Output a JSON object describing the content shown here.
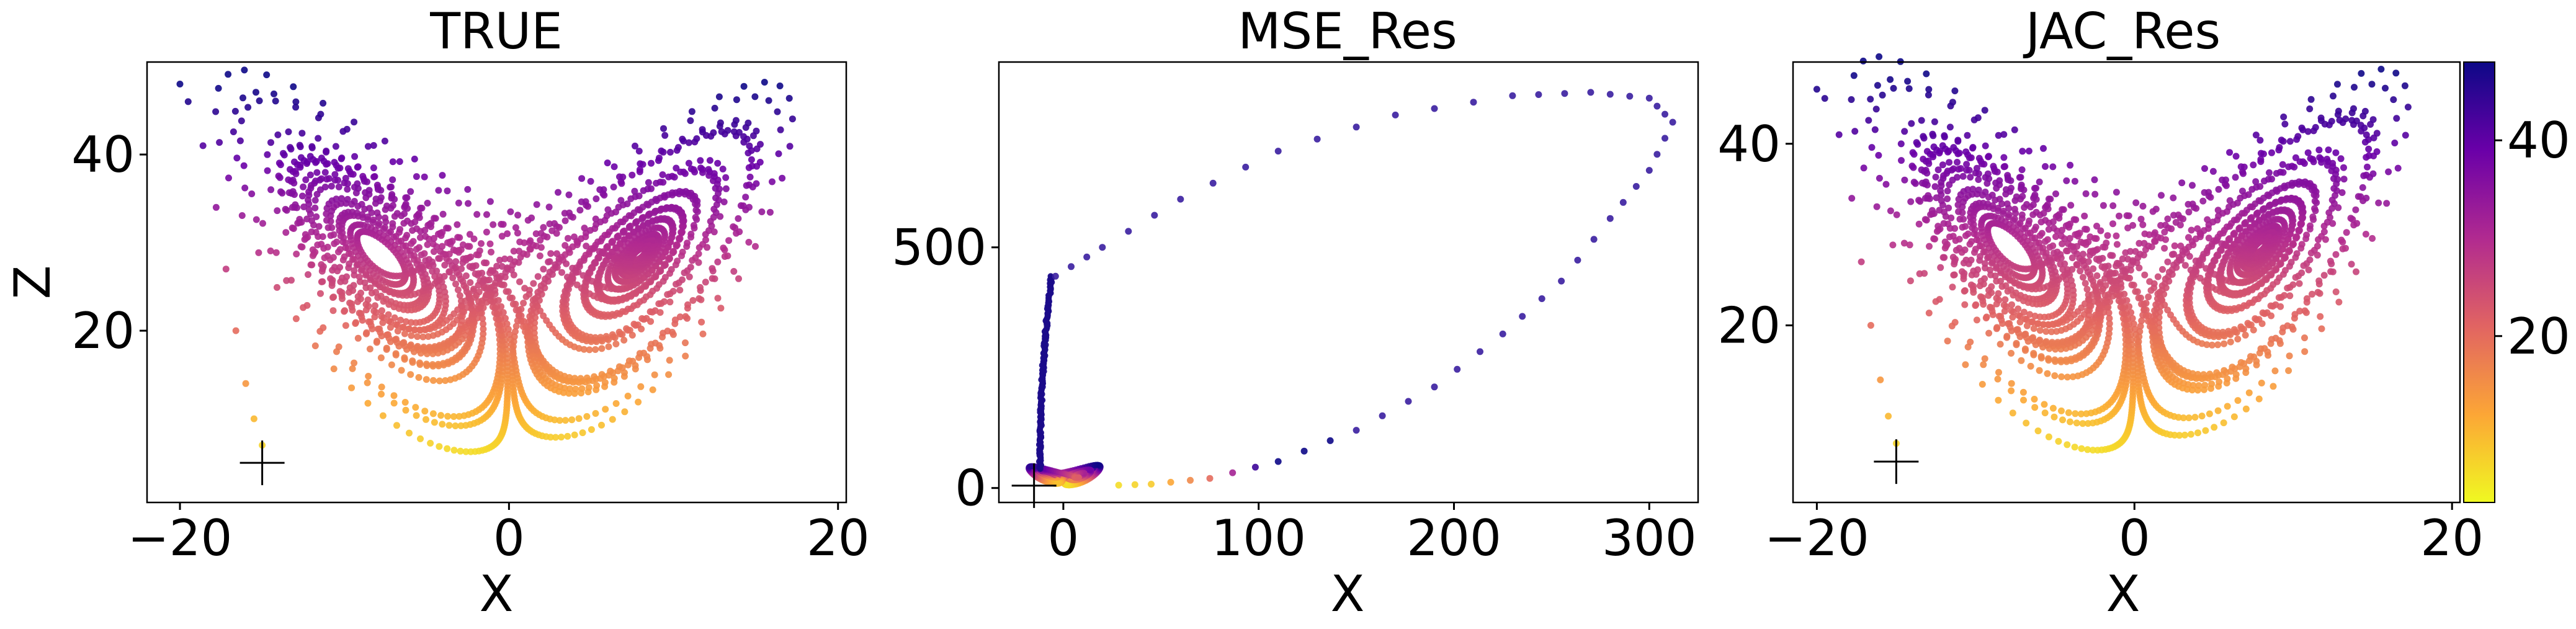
{
  "figure": {
    "colormap": "plasma"
  },
  "colorbar": {
    "min": 3,
    "max": 48,
    "ticks": [
      20,
      40
    ],
    "tick_labels": [
      "20",
      "40"
    ],
    "colors": [
      "#f0f921",
      "#fca636",
      "#e16462",
      "#b12a90",
      "#6a00a8",
      "#0d0887"
    ]
  },
  "chart_data": [
    {
      "type": "scatter",
      "title": "TRUE",
      "xlabel": "X",
      "ylabel": "Z",
      "xlim": [
        -22,
        20.5
      ],
      "ylim": [
        0.5,
        50.5
      ],
      "xticks": [
        -20,
        0,
        20
      ],
      "xtick_labels": [
        "−20",
        "0",
        "20"
      ],
      "yticks": [
        20,
        40
      ],
      "ytick_labels": [
        "20",
        "40"
      ],
      "initial_point": [
        -15,
        5
      ],
      "attractor": {
        "kind": "lorenz",
        "x_range": [
          -20,
          18.5
        ],
        "z_range": [
          3,
          48
        ],
        "orbits": 2600
      },
      "transient": [
        [
          -15,
          7
        ],
        [
          -15.5,
          10
        ],
        [
          -16,
          14
        ],
        [
          -16.6,
          20
        ],
        [
          -17.2,
          27
        ],
        [
          -17.8,
          34
        ],
        [
          -18.6,
          41
        ],
        [
          -19.5,
          46
        ],
        [
          -20,
          48
        ]
      ]
    },
    {
      "type": "scatter",
      "title": "MSE_Res",
      "xlabel": "X",
      "ylabel": "",
      "xlim": [
        -33,
        325
      ],
      "ylim": [
        -30,
        885
      ],
      "xticks": [
        0,
        100,
        200,
        300
      ],
      "xtick_labels": [
        "0",
        "100",
        "200",
        "300"
      ],
      "yticks": [
        0,
        500
      ],
      "ytick_labels": [
        "0",
        "500"
      ],
      "initial_point": [
        -15,
        5
      ],
      "blob": {
        "x_range": [
          -18,
          20
        ],
        "z_range": [
          -2,
          55
        ]
      },
      "column": {
        "x_range": [
          -12,
          -4
        ],
        "z_range": [
          40,
          440
        ]
      },
      "loop": [
        [
          -4,
          440
        ],
        [
          20,
          500
        ],
        [
          60,
          600
        ],
        [
          110,
          700
        ],
        [
          170,
          775
        ],
        [
          230,
          815
        ],
        [
          270,
          822
        ],
        [
          300,
          810
        ],
        [
          312,
          760
        ],
        [
          300,
          660
        ],
        [
          280,
          560
        ],
        [
          255,
          430
        ],
        [
          225,
          320
        ],
        [
          190,
          210
        ],
        [
          150,
          120
        ],
        [
          110,
          55
        ],
        [
          75,
          20
        ],
        [
          45,
          8
        ],
        [
          20,
          5
        ]
      ]
    },
    {
      "type": "scatter",
      "title": "JAC_Res",
      "xlabel": "X",
      "ylabel": "",
      "xlim": [
        -21.5,
        20.5
      ],
      "ylim": [
        0.5,
        49
      ],
      "xticks": [
        -20,
        0,
        20
      ],
      "xtick_labels": [
        "−20",
        "0",
        "20"
      ],
      "yticks": [
        20,
        40
      ],
      "ytick_labels": [
        "20",
        "40"
      ],
      "initial_point": [
        -15,
        5
      ],
      "attractor": {
        "kind": "lorenz",
        "x_range": [
          -20,
          18.5
        ],
        "z_range": [
          3,
          48
        ],
        "orbits": 2600
      },
      "transient": [
        [
          -15,
          7
        ],
        [
          -15.5,
          10
        ],
        [
          -16,
          14
        ],
        [
          -16.6,
          20
        ],
        [
          -17.2,
          27
        ],
        [
          -17.8,
          34
        ],
        [
          -18.6,
          41
        ],
        [
          -19.5,
          45
        ],
        [
          -20,
          46
        ]
      ]
    }
  ]
}
